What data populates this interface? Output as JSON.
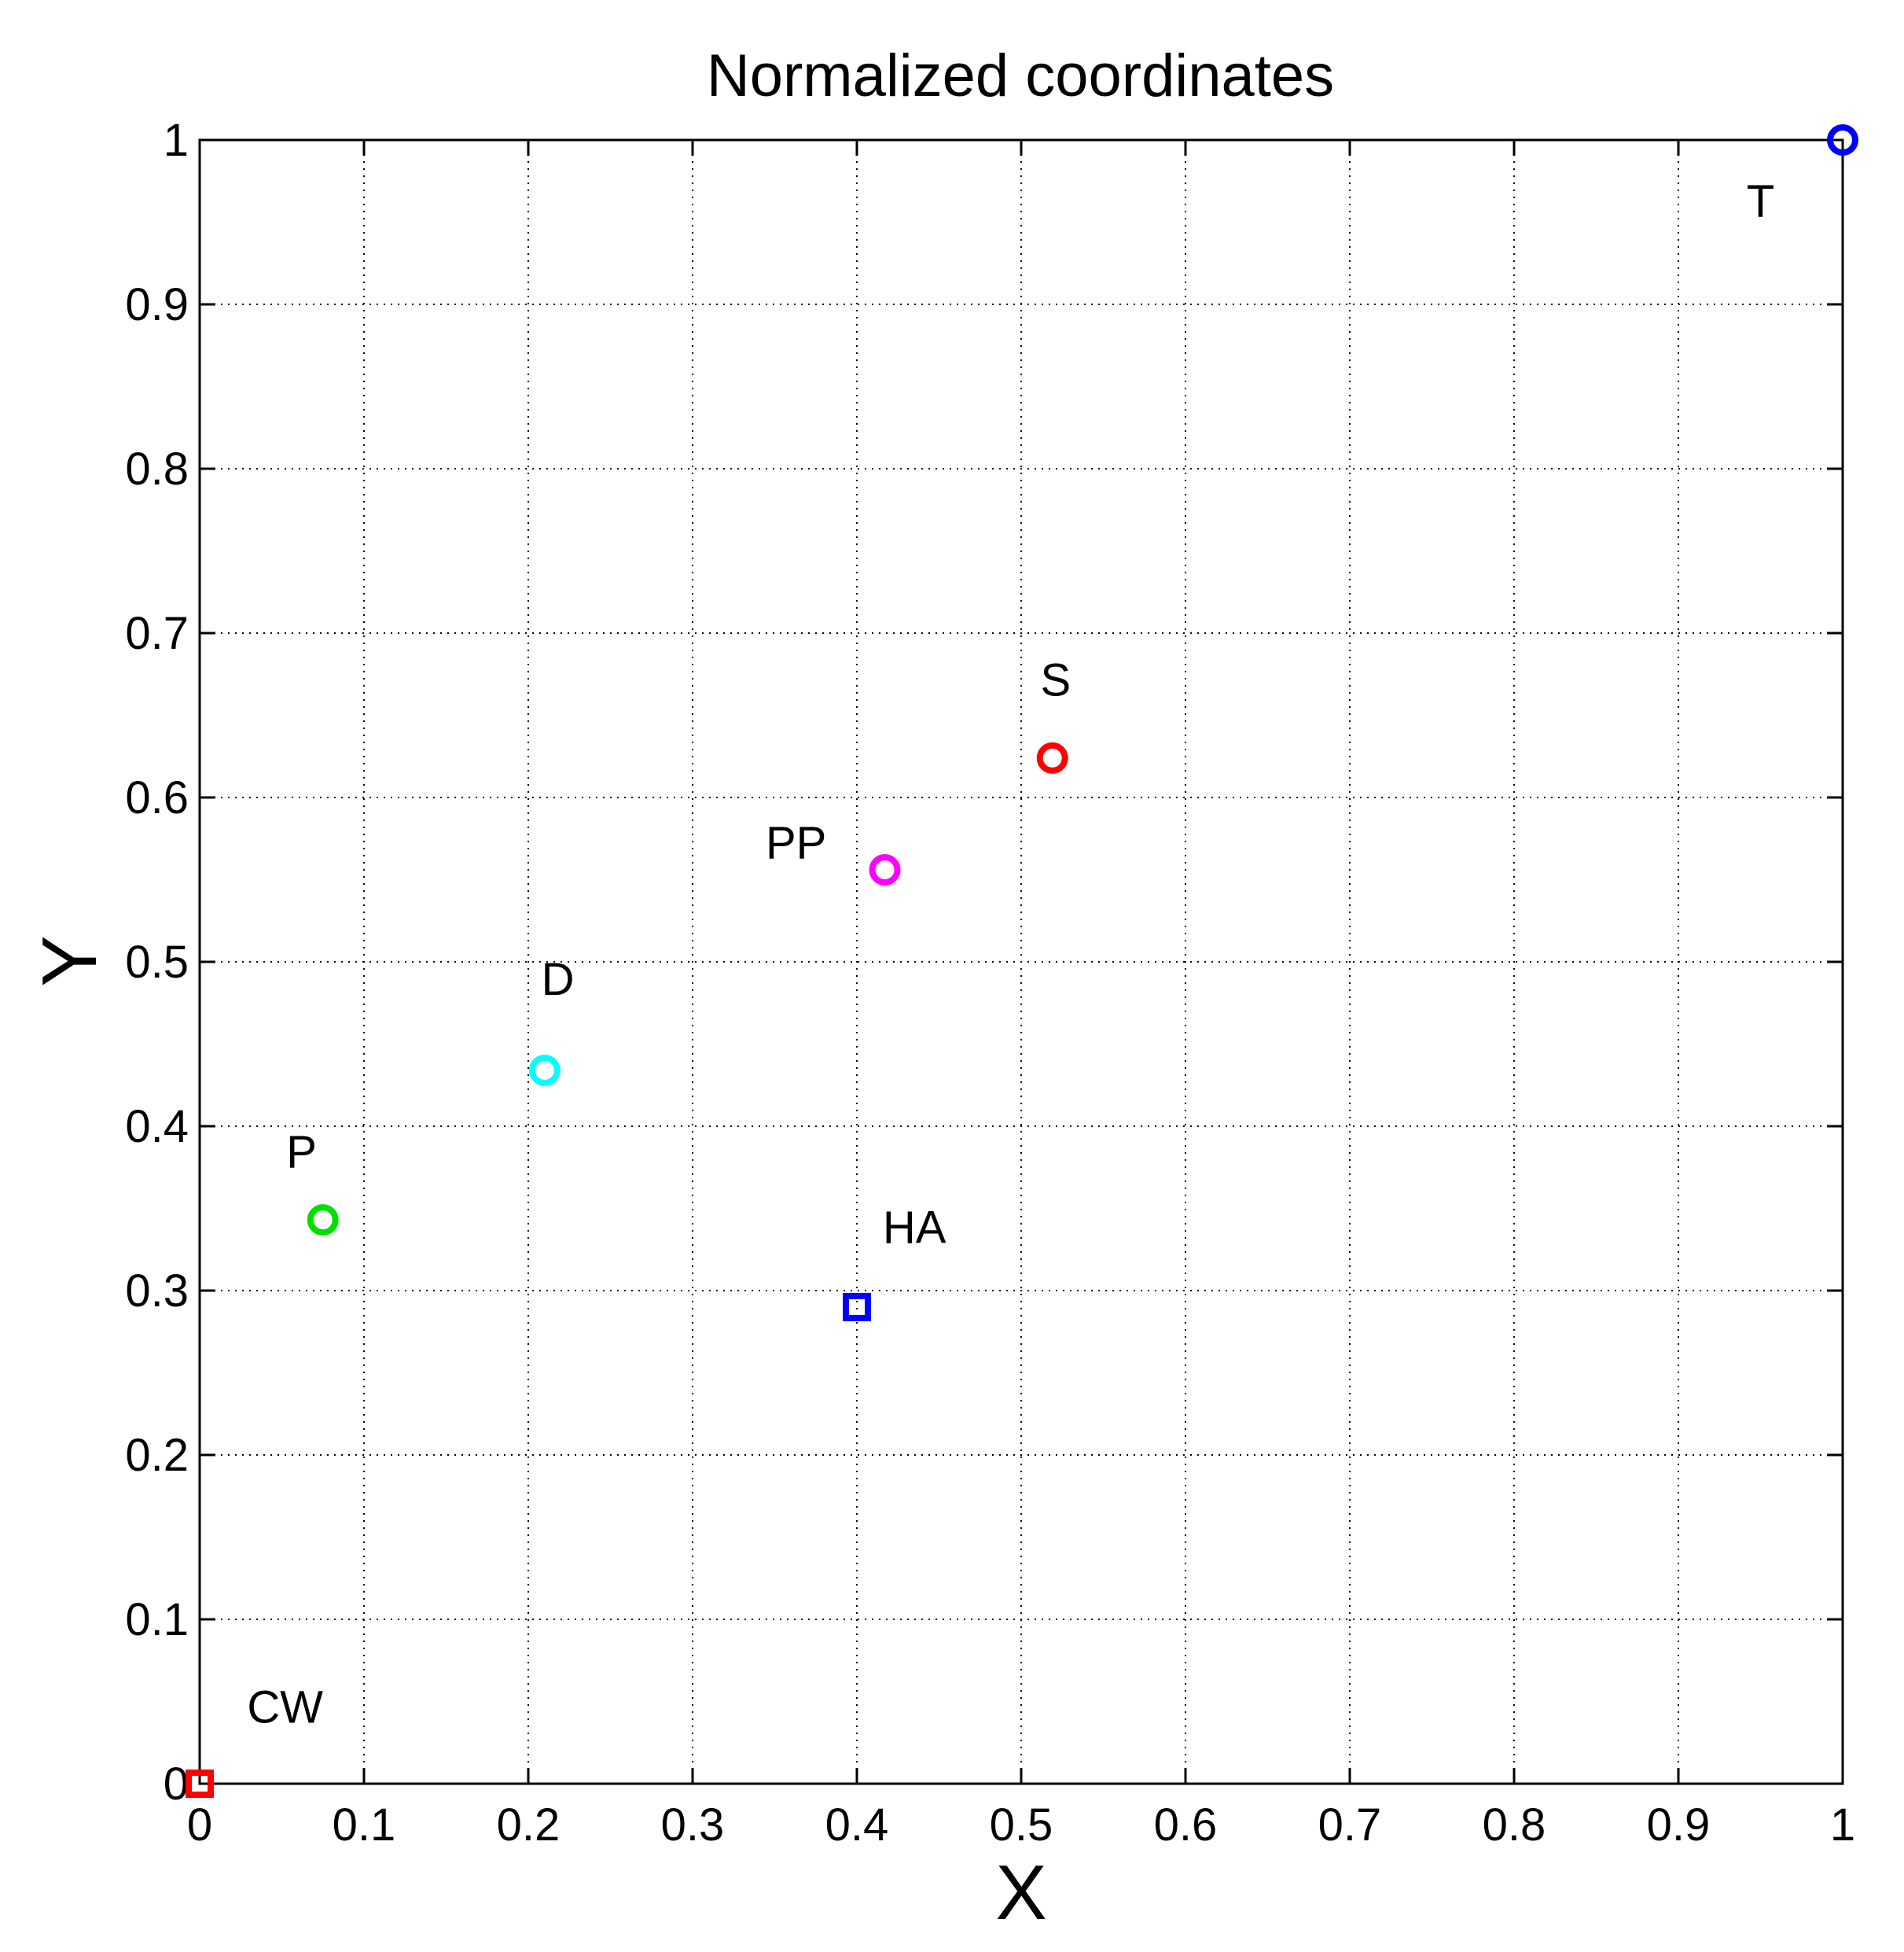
{
  "chart_data": {
    "type": "scatter",
    "title": "Normalized coordinates",
    "xlabel": "X",
    "ylabel": "Y",
    "xlim": [
      0,
      1
    ],
    "ylim": [
      0,
      1
    ],
    "grid": true,
    "xticks": [
      "0",
      "0.1",
      "0.2",
      "0.3",
      "0.4",
      "0.5",
      "0.6",
      "0.7",
      "0.8",
      "0.9",
      "1"
    ],
    "yticks": [
      "0",
      "0.1",
      "0.2",
      "0.3",
      "0.4",
      "0.5",
      "0.6",
      "0.7",
      "0.8",
      "0.9",
      "1"
    ],
    "points": [
      {
        "label": "CW",
        "x": 0.0,
        "y": 0.0,
        "marker": "square",
        "color": "#ff0000"
      },
      {
        "label": "P",
        "x": 0.075,
        "y": 0.343,
        "marker": "circle",
        "color": "#00e000"
      },
      {
        "label": "D",
        "x": 0.21,
        "y": 0.434,
        "marker": "circle",
        "color": "#00ffff"
      },
      {
        "label": "HA",
        "x": 0.4,
        "y": 0.29,
        "marker": "square",
        "color": "#0000ff"
      },
      {
        "label": "PP",
        "x": 0.417,
        "y": 0.556,
        "marker": "circle",
        "color": "#ff00ff"
      },
      {
        "label": "S",
        "x": 0.519,
        "y": 0.624,
        "marker": "circle",
        "color": "#ff0000"
      },
      {
        "label": "T",
        "x": 1.0,
        "y": 1.0,
        "marker": "circle",
        "color": "#0000ff"
      }
    ],
    "annotations": [
      {
        "text": "CW",
        "x": 0.052,
        "y": 0.037
      },
      {
        "text": "P",
        "x": 0.062,
        "y": 0.375
      },
      {
        "text": "D",
        "x": 0.218,
        "y": 0.48
      },
      {
        "text": "HA",
        "x": 0.435,
        "y": 0.329
      },
      {
        "text": "PP",
        "x": 0.363,
        "y": 0.563
      },
      {
        "text": "S",
        "x": 0.521,
        "y": 0.662
      },
      {
        "text": "T",
        "x": 0.95,
        "y": 0.953
      }
    ]
  }
}
